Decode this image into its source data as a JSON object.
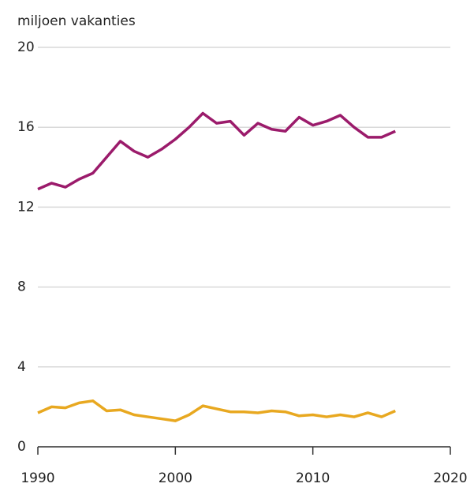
{
  "chart_data": {
    "type": "line",
    "y_label": "miljoen vakanties",
    "x": [
      1990,
      1991,
      1992,
      1993,
      1994,
      1995,
      1996,
      1997,
      1998,
      1999,
      2000,
      2001,
      2002,
      2003,
      2004,
      2005,
      2006,
      2007,
      2008,
      2009,
      2010,
      2011,
      2012,
      2013,
      2014,
      2015,
      2016
    ],
    "series": [
      {
        "color": "#9b1b6b",
        "values": [
          12.9,
          13.2,
          13.0,
          13.4,
          13.7,
          14.5,
          15.3,
          14.8,
          14.5,
          14.9,
          15.4,
          16.0,
          16.7,
          16.2,
          16.3,
          15.6,
          16.2,
          15.9,
          15.8,
          16.5,
          16.1,
          16.3,
          16.6,
          16.0,
          15.5,
          15.5,
          15.8
        ]
      },
      {
        "color": "#e8a820",
        "values": [
          1.7,
          2.0,
          1.95,
          2.2,
          2.3,
          1.8,
          1.85,
          1.6,
          1.5,
          1.4,
          1.3,
          1.6,
          2.05,
          1.9,
          1.75,
          1.75,
          1.7,
          1.8,
          1.75,
          1.55,
          1.6,
          1.5,
          1.6,
          1.5,
          1.7,
          1.5,
          1.8
        ]
      }
    ],
    "xlim": [
      1990,
      2020
    ],
    "xticks": [
      1990,
      2000,
      2010,
      2020
    ],
    "ylim": [
      0,
      20
    ],
    "yticks": [
      0,
      4,
      8,
      12,
      16,
      20
    ],
    "grid": true
  }
}
